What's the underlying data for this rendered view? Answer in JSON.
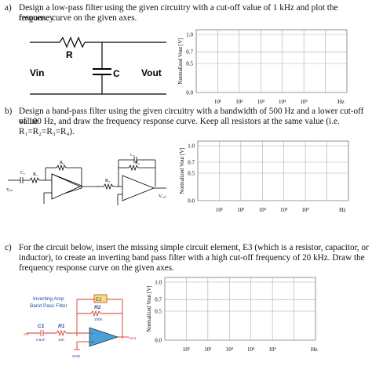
{
  "questions": [
    {
      "label": "a)",
      "lines": [
        "Design a low-pass filter using the given circuitry with a cut-off value of 1 kHz and plot the frequency",
        "response curve on the given axes."
      ]
    },
    {
      "label": "b)",
      "lines": [
        "Design a band-pass filter using the given circuitry with a bandwidth of 500 Hz and a lower cut-off value",
        "of 100 Hz, and draw the frequency response curve. Keep all resistors at the same value (i.e.",
        "R₁=R₂=R₃=R₄)."
      ]
    },
    {
      "label": "c)",
      "lines": [
        "For the circuit below, insert the missing simple circuit element, E3 (which is a resistor, capacitor, or",
        "inductor), to create an inverting band pass filter with a high cut-off frequency of 20 kHz. Draw the",
        "frequency response curve on the given axes."
      ]
    }
  ],
  "circuit_a": {
    "r_label": "R",
    "c_label": "C",
    "vin": "Vin",
    "vout": "Vout"
  },
  "circuit_b": {
    "r1": "R₁",
    "r2": "R₂",
    "r3": "R₃",
    "r4": "R₄",
    "c1": "C₁",
    "c2": "C₂",
    "vin": "Vᵢₙ",
    "vout": "Vₒᵤₜ"
  },
  "circuit_c": {
    "title_line1": "Inverting Amp",
    "title_line2": "Band Pass Filter",
    "e3": "E3",
    "r2": "R2",
    "r2_value": "100K",
    "c1": "C1",
    "c1_value": "0.8uF",
    "r1": "R1",
    "r1_value": "10K",
    "vin": "Vin",
    "vout": "Vout",
    "gnd": "GND",
    "colors": {
      "label_blue": "#1f4fa3",
      "wire_red": "#d23a2a",
      "opamp_fill": "#4aa0d8",
      "e3_fill": "#f6e27a"
    }
  },
  "axes": {
    "ylabel": "Normalized Vout [V]",
    "xunit": "Hz",
    "yticks": [
      "1.0",
      "0.7",
      "0.5",
      "0.0"
    ],
    "xticks": [
      "10¹",
      "10²",
      "10³",
      "10⁴",
      "10⁵"
    ]
  }
}
